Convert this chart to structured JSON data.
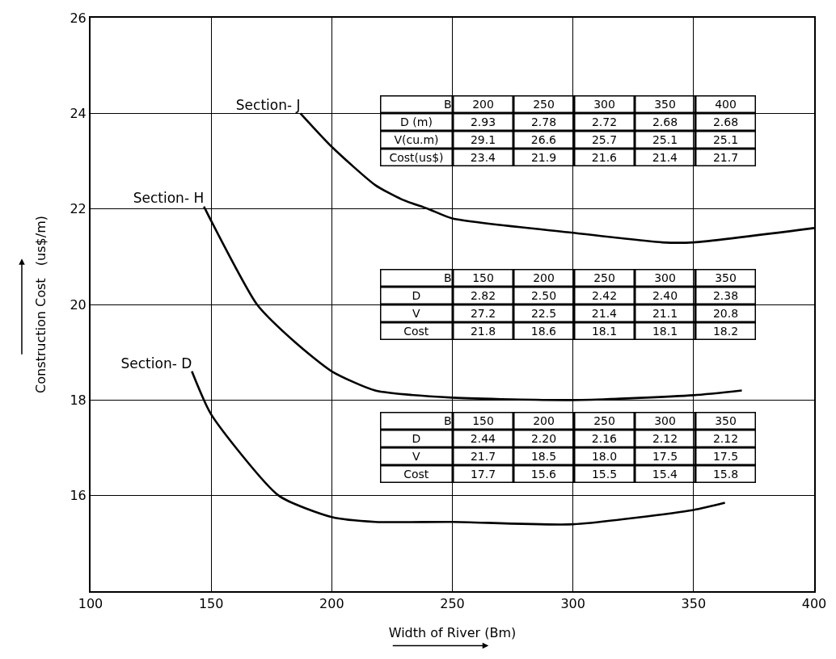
{
  "chart_data": {
    "type": "line",
    "xlabel": "Width of River (Bm)",
    "ylabel": "Construction Cost   (us$/m)",
    "xlim": [
      100,
      400
    ],
    "xticks": [
      100,
      150,
      200,
      250,
      300,
      350,
      400
    ],
    "ylim": [
      14,
      26
    ],
    "yticks": [
      {
        "value": 14,
        "label": null
      },
      16,
      18,
      20,
      22,
      24,
      26
    ],
    "grid": true,
    "legend": false,
    "marker": "none",
    "line_style": "solid",
    "series": [
      {
        "name": "Section- J",
        "color": "#000000",
        "x": [
          187,
          200,
          218,
          229,
          240,
          250,
          300,
          337,
          350,
          400
        ],
        "values": [
          24.0,
          23.3,
          22.5,
          22.2,
          22.0,
          21.8,
          21.5,
          21.3,
          21.3,
          21.6
        ]
      },
      {
        "name": "Section- H",
        "color": "#000000",
        "x": [
          147,
          150,
          169,
          185,
          200,
          218,
          250,
          300,
          350,
          370
        ],
        "values": [
          22.05,
          21.75,
          20.0,
          19.2,
          18.6,
          18.2,
          18.05,
          18.0,
          18.1,
          18.2
        ]
      },
      {
        "name": "Section- D",
        "color": "#000000",
        "x": [
          142,
          150,
          178,
          200,
          218,
          250,
          300,
          350,
          363
        ],
        "values": [
          18.6,
          17.7,
          16.0,
          15.55,
          15.45,
          15.45,
          15.4,
          15.7,
          15.85
        ]
      }
    ],
    "annotations": [
      "B\t200\t250\t300\t350\t400\nD (m)\t2.93\t2.78\t2.72\t2.68\t2.68\nV(cu.m)\t29.1\t26.6\t25.7\t25.1\t25.1\nCost(us$)\t23.4\t21.9\t21.6\t21.4\t21.7",
      "B\t150\t200\t250\t300\t350\nD\t2.82\t2.50\t2.42\t2.40\t2.38\nV\t27.2\t22.5\t21.4\t21.1\t20.8\nCost\t21.8\t18.6\t18.1\t18.1\t18.2",
      "B\t150\t200\t250\t300\t350\nD\t2.44\t2.20\t2.16\t2.12\t2.12\nV\t21.7\t18.5\t18.0\t17.5\t17.5\nCost\t17.7\t15.6\t15.5\t15.4\t15.8"
    ]
  }
}
